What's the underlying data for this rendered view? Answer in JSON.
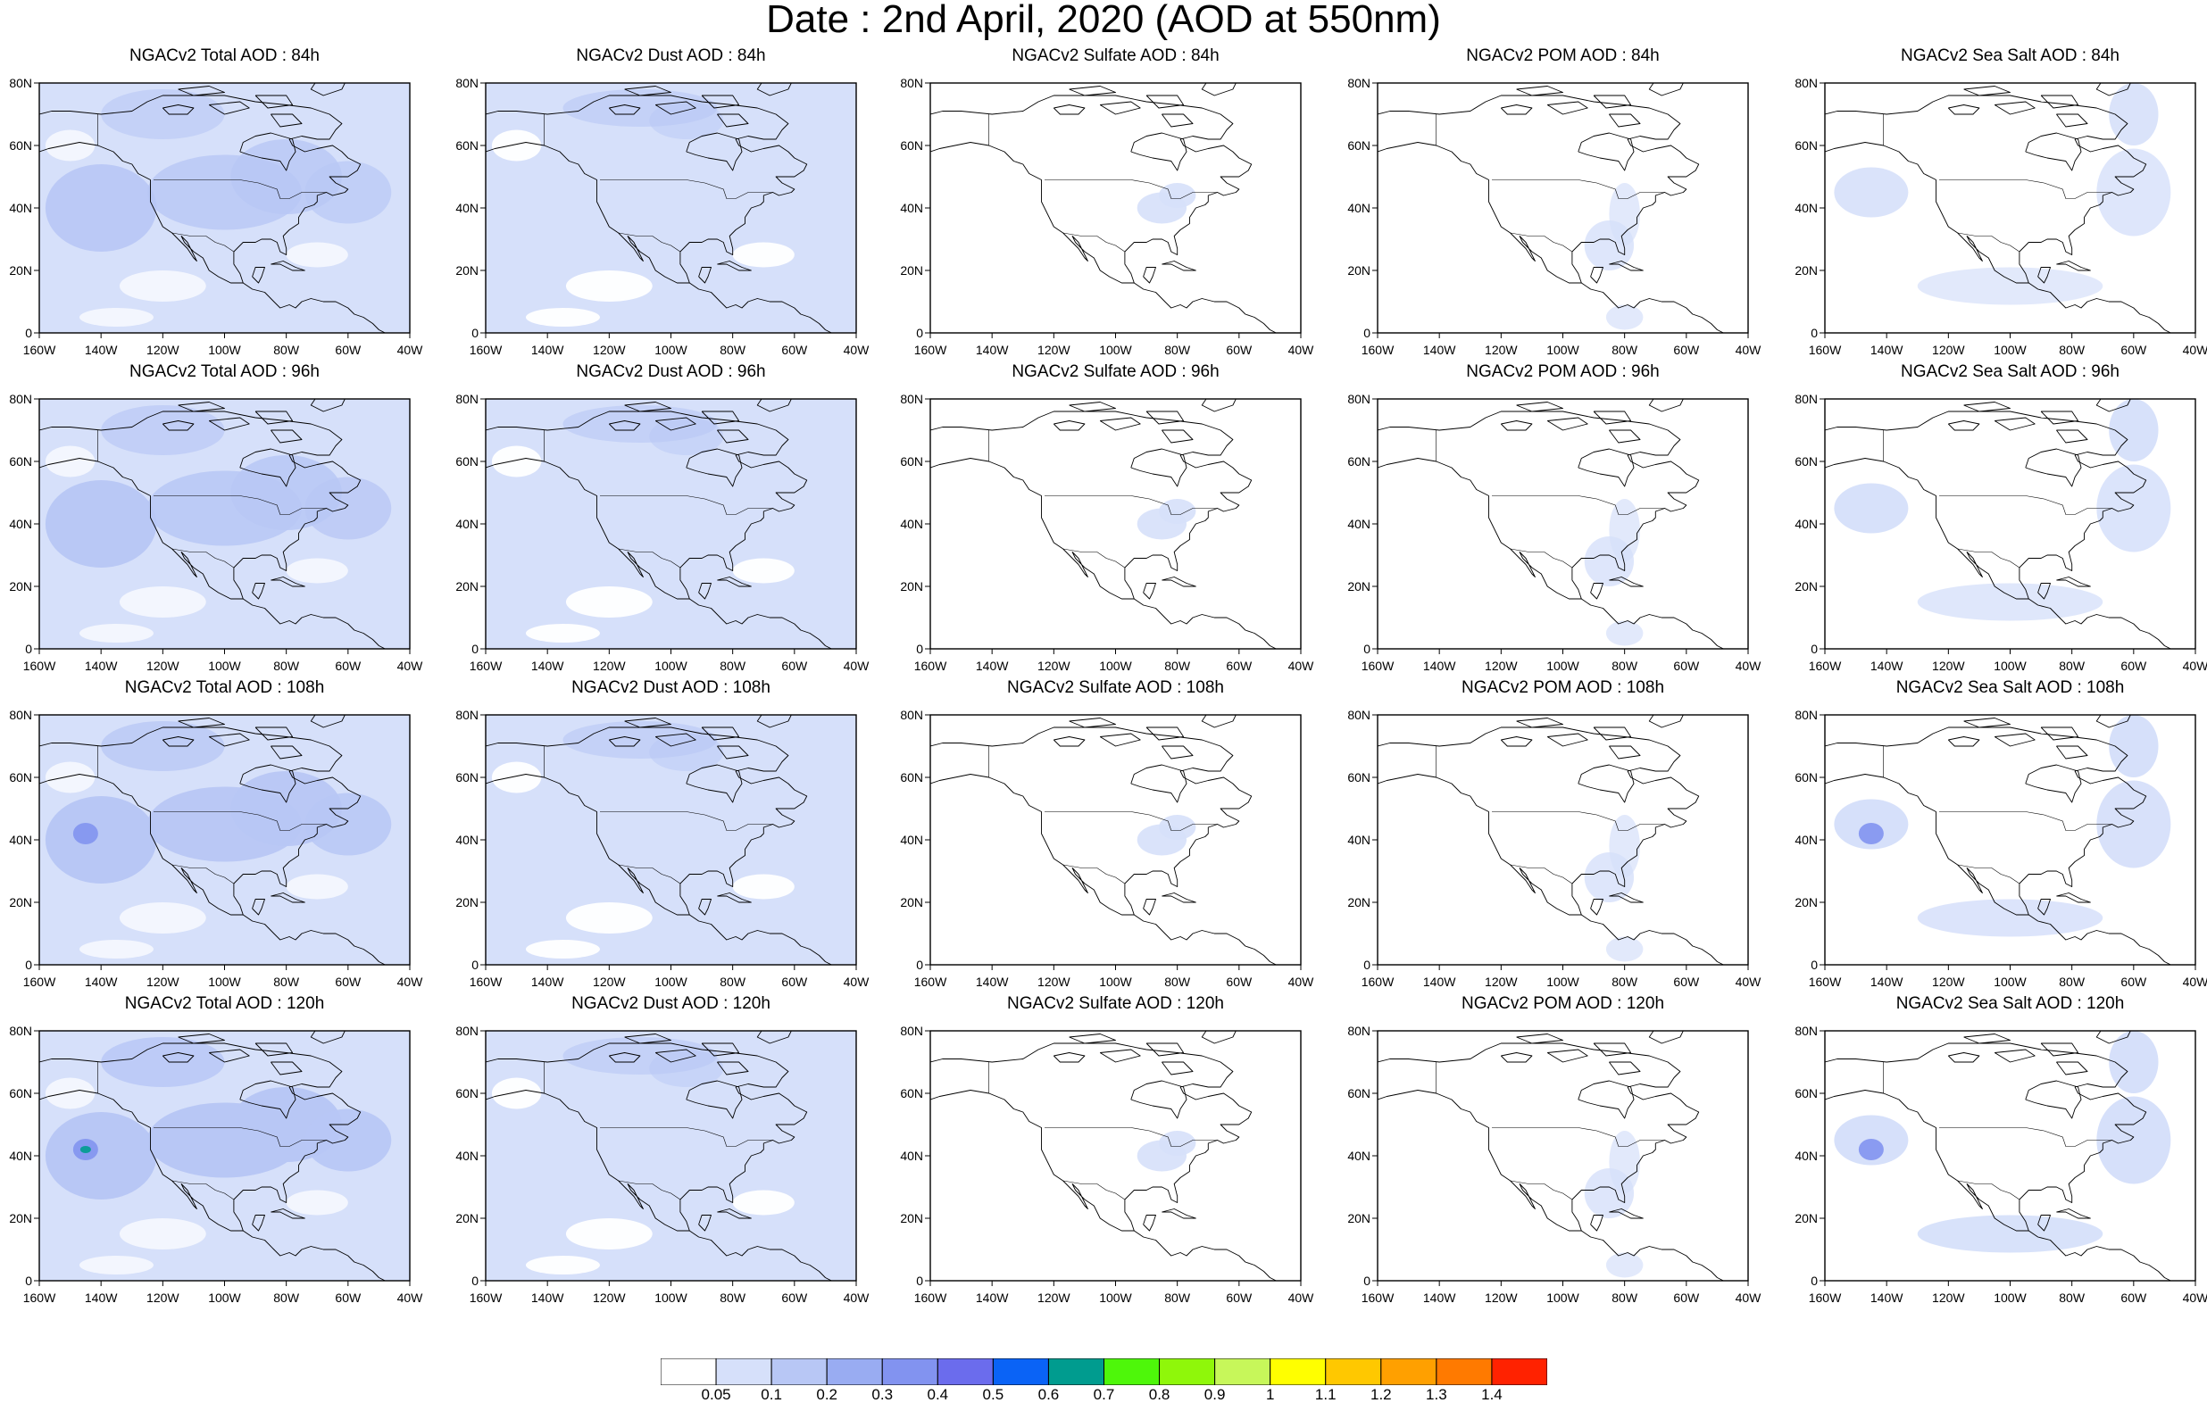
{
  "title": "Date : 2nd April, 2020 (AOD at 550nm)",
  "panels": [
    [
      "NGACv2 Total AOD : 84h",
      "NGACv2 Dust AOD : 84h",
      "NGACv2 Sulfate AOD : 84h",
      "NGACv2 POM AOD : 84h",
      "NGACv2 Sea Salt AOD : 84h"
    ],
    [
      "NGACv2 Total AOD : 96h",
      "NGACv2 Dust AOD : 96h",
      "NGACv2 Sulfate AOD : 96h",
      "NGACv2 POM AOD : 96h",
      "NGACv2 Sea Salt AOD : 96h"
    ],
    [
      "NGACv2 Total AOD : 108h",
      "NGACv2 Dust AOD : 108h",
      "NGACv2 Sulfate AOD : 108h",
      "NGACv2 POM AOD : 108h",
      "NGACv2 Sea Salt AOD : 108h"
    ],
    [
      "NGACv2 Total AOD : 120h",
      "NGACv2 Dust AOD : 120h",
      "NGACv2 Sulfate AOD : 120h",
      "NGACv2 POM AOD : 120h",
      "NGACv2 Sea Salt  AOD : 120h"
    ]
  ],
  "lon_labels": [
    "160W",
    "140W",
    "120W",
    "100W",
    "80W",
    "60W",
    "40W"
  ],
  "lat_labels": [
    "0",
    "20N",
    "40N",
    "60N",
    "80N"
  ],
  "colorbar": {
    "labels": [
      "0.05",
      "0.1",
      "0.2",
      "0.3",
      "0.4",
      "0.5",
      "0.6",
      "0.7",
      "0.8",
      "0.9",
      "1",
      "1.1",
      "1.2",
      "1.3",
      "1.4"
    ],
    "colors": [
      "#ffffff",
      "#d6e0fa",
      "#b8c7f5",
      "#99acf2",
      "#8293f0",
      "#6b6ced",
      "#0a63f6",
      "#009c8f",
      "#4ef70a",
      "#8ff70a",
      "#c7f75a",
      "#ffff00",
      "#ffc800",
      "#ffa000",
      "#ff7a00",
      "#ff2200"
    ]
  }
}
